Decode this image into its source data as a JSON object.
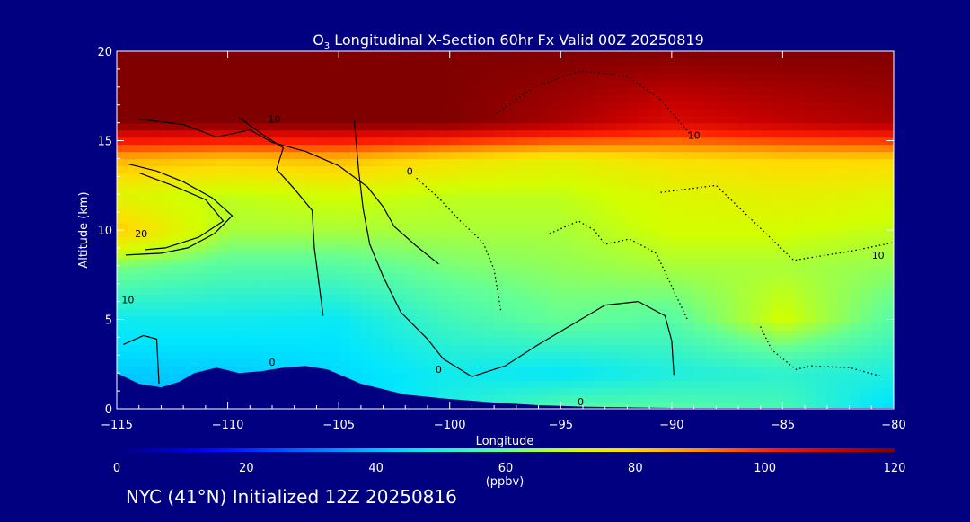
{
  "chart_data": {
    "type": "heatmap",
    "title_prefix": "O",
    "title_subscript": "3",
    "title_rest": " Longitudinal X-Section 60hr  Fx Valid 00Z 20250819",
    "xlabel": "Longitude",
    "ylabel": "Altitude (km)",
    "xlim": [
      -115,
      -80
    ],
    "ylim": [
      0,
      20
    ],
    "x_ticks": [
      -115,
      -110,
      -105,
      -100,
      -95,
      -90,
      -85,
      -80
    ],
    "x_tick_labels": [
      "−115",
      "−110",
      "−105",
      "−100",
      "−95",
      "−90",
      "−85",
      "−80"
    ],
    "y_ticks": [
      0,
      5,
      10,
      15,
      20
    ],
    "y_tick_labels": [
      "0",
      "5",
      "10",
      "15",
      "20"
    ],
    "colorbar": {
      "unit": "(ppbv)",
      "range": [
        0,
        120
      ],
      "ticks": [
        0,
        20,
        40,
        60,
        80,
        100,
        120
      ],
      "tick_labels": [
        "0",
        "20",
        "40",
        "60",
        "80",
        "100",
        "120"
      ]
    },
    "profile_longitudes": [
      -115,
      -110,
      -105,
      -100,
      -95,
      -90,
      -85,
      -80
    ],
    "ozone_profiles": [
      {
        "lon": -115,
        "alt": [
          0,
          2,
          5,
          8,
          10,
          12,
          14,
          16,
          20
        ],
        "o3": [
          40,
          42,
          48,
          62,
          82,
          72,
          85,
          120,
          120
        ]
      },
      {
        "lon": -110,
        "alt": [
          0,
          2,
          5,
          8,
          10,
          12,
          14,
          16,
          20
        ],
        "o3": [
          40,
          42,
          48,
          58,
          66,
          68,
          82,
          120,
          120
        ]
      },
      {
        "lon": -105,
        "alt": [
          0,
          2,
          5,
          8,
          10,
          12,
          14,
          16,
          20
        ],
        "o3": [
          42,
          44,
          47,
          58,
          66,
          70,
          84,
          120,
          120
        ]
      },
      {
        "lon": -100,
        "alt": [
          0,
          2,
          5,
          8,
          10,
          12,
          14,
          16,
          20
        ],
        "o3": [
          50,
          48,
          55,
          62,
          66,
          68,
          78,
          120,
          120
        ]
      },
      {
        "lon": -95,
        "alt": [
          0,
          2,
          5,
          8,
          10,
          12,
          14,
          16,
          20
        ],
        "o3": [
          58,
          46,
          60,
          64,
          66,
          68,
          74,
          115,
          120
        ]
      },
      {
        "lon": -90,
        "alt": [
          0,
          2,
          5,
          8,
          10,
          12,
          14,
          16,
          20
        ],
        "o3": [
          58,
          50,
          58,
          66,
          70,
          72,
          78,
          108,
          120
        ]
      },
      {
        "lon": -85,
        "alt": [
          0,
          2,
          5,
          8,
          10,
          12,
          14,
          16,
          20
        ],
        "o3": [
          56,
          52,
          70,
          66,
          70,
          74,
          80,
          112,
          120
        ]
      },
      {
        "lon": -80,
        "alt": [
          0,
          2,
          5,
          8,
          10,
          12,
          14,
          16,
          20
        ],
        "o3": [
          44,
          50,
          58,
          64,
          68,
          72,
          80,
          115,
          120
        ]
      }
    ],
    "terrain": {
      "lon": [
        -115,
        -114,
        -113,
        -112.2,
        -111.5,
        -110.5,
        -109.5,
        -108.5,
        -107.5,
        -106.5,
        -105.5,
        -104,
        -102,
        -100,
        -98,
        -96,
        -94,
        -92,
        -90,
        -85,
        -80
      ],
      "alt": [
        2.0,
        1.4,
        1.2,
        1.5,
        2.0,
        2.3,
        2.0,
        2.1,
        2.3,
        2.4,
        2.2,
        1.4,
        0.8,
        0.55,
        0.35,
        0.2,
        0.12,
        0.08,
        0.05,
        0.05,
        0.05
      ]
    },
    "contours": [
      {
        "style": "solid",
        "lon": [
          -114,
          -112,
          -110.5,
          -109,
          -108,
          -106.5,
          -105,
          -103.7,
          -103,
          -102.5,
          -101.5,
          -100.5
        ],
        "alt": [
          16.2,
          15.9,
          15.2,
          15.6,
          14.9,
          14.4,
          13.6,
          12.4,
          11.3,
          10.2,
          9.1,
          8.1
        ]
      },
      {
        "style": "solid",
        "lon": [
          -114.5,
          -113.2,
          -112,
          -110.7,
          -109.8,
          -110.6,
          -111.8,
          -113,
          -114.6
        ],
        "alt": [
          13.7,
          13.3,
          12.7,
          11.8,
          10.8,
          9.8,
          9.0,
          8.7,
          8.6
        ]
      },
      {
        "style": "solid",
        "lon": [
          -114,
          -112.5,
          -111,
          -110.2,
          -111.3,
          -112.8,
          -113.7
        ],
        "alt": [
          13.2,
          12.5,
          11.7,
          10.5,
          9.6,
          9.0,
          8.9
        ]
      },
      {
        "style": "solid",
        "lon": [
          -109.5,
          -108.5,
          -107.5,
          -107.8,
          -107,
          -106.2,
          -106.1,
          -105.7
        ],
        "alt": [
          16.3,
          15.4,
          14.6,
          13.4,
          12.3,
          11.1,
          9.0,
          5.2
        ]
      },
      {
        "style": "solid",
        "lon": [
          -104.3,
          -104.1,
          -103.9,
          -103.6,
          -103,
          -102.2,
          -101,
          -100.3,
          -99
        ],
        "alt": [
          16.1,
          13.3,
          11.2,
          9.2,
          7.4,
          5.4,
          3.9,
          2.8,
          1.8
        ]
      },
      {
        "style": "solid",
        "lon": [
          -99,
          -97.5,
          -96,
          -94.5,
          -93,
          -91.5,
          -90.3,
          -90,
          -89.9
        ],
        "alt": [
          1.8,
          2.4,
          3.6,
          4.7,
          5.8,
          6.0,
          5.2,
          3.8,
          1.9
        ]
      },
      {
        "style": "solid",
        "lon": [
          -114.7,
          -113.8,
          -113.2,
          -113.1
        ],
        "alt": [
          3.6,
          4.1,
          3.9,
          1.4
        ]
      },
      {
        "style": "dotted",
        "lon": [
          -101.5,
          -100.5,
          -99.6,
          -98.5,
          -98,
          -97.7
        ],
        "alt": [
          12.9,
          11.8,
          10.6,
          9.3,
          7.8,
          5.5
        ]
      },
      {
        "style": "dotted",
        "lon": [
          -95.5,
          -94.2,
          -93.5,
          -93,
          -91.9,
          -90.7,
          -89.3
        ],
        "alt": [
          9.8,
          10.5,
          10.0,
          9.2,
          9.5,
          8.7,
          5.0
        ]
      },
      {
        "style": "dotted",
        "lon": [
          -90.5,
          -88,
          -86,
          -84.5,
          -82,
          -80
        ],
        "alt": [
          12.1,
          12.5,
          10.1,
          8.3,
          8.8,
          9.3
        ]
      },
      {
        "style": "dotted",
        "lon": [
          -97.9,
          -96.2,
          -94.1,
          -92,
          -90.5,
          -89
        ],
        "alt": [
          16.5,
          18.0,
          18.9,
          18.6,
          17.3,
          15.1
        ]
      },
      {
        "style": "dotted",
        "lon": [
          -86,
          -85.5,
          -84.4,
          -83.7,
          -82,
          -80.5
        ],
        "alt": [
          4.6,
          3.3,
          2.2,
          2.4,
          2.3,
          1.8
        ]
      }
    ],
    "contour_labels": [
      {
        "text": "10",
        "lon": -107.9,
        "alt": 16.0
      },
      {
        "text": "20",
        "lon": -113.9,
        "alt": 9.6
      },
      {
        "text": "10",
        "lon": -114.5,
        "alt": 5.9
      },
      {
        "text": "0",
        "lon": -108.0,
        "alt": 2.4
      },
      {
        "text": "0",
        "lon": -101.8,
        "alt": 13.1
      },
      {
        "text": "0",
        "lon": -100.5,
        "alt": 2.0
      },
      {
        "text": "10",
        "lon": -89.0,
        "alt": 15.1
      },
      {
        "text": "10",
        "lon": -80.7,
        "alt": 8.4
      },
      {
        "text": "0",
        "lon": -94.1,
        "alt": 0.2
      }
    ]
  },
  "footer": {
    "label": "NYC (41°N) Initialized 12Z 20250816"
  },
  "colors": {
    "background": "#000080",
    "ozone_max": "#800000",
    "text": "#ffffff",
    "contour": "#000000"
  }
}
